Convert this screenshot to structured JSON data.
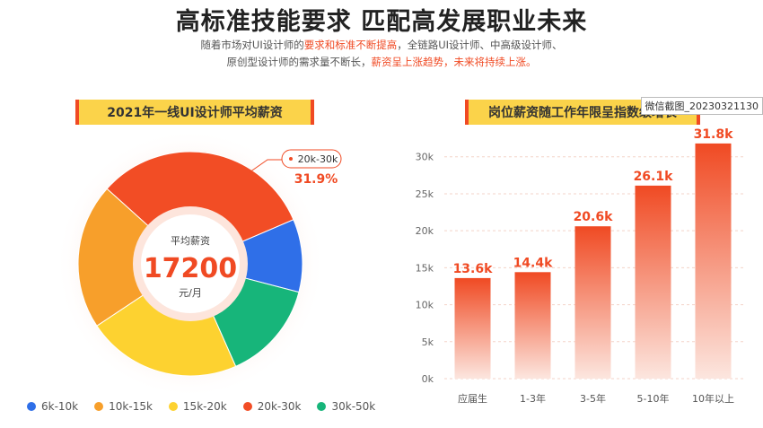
{
  "header": {
    "title": "高标准技能要求 匹配高发展职业未来",
    "sub1_a": "随着市场对UI设计师的",
    "sub1_b": "要求和标准不断提高",
    "sub1_c": "，全链路UI设计师、中高级设计师、",
    "sub2_a": "原创型设计师的需求量不断长，",
    "sub2_b": "薪资呈上涨趋势，未来将持续上涨。"
  },
  "watermark": "微信截图_20230321130",
  "colors": {
    "accent_red": "#f04a23",
    "banner_yellow": "#fbd34a"
  },
  "chart_data": [
    {
      "type": "pie",
      "title": "2021年一线UI设计师平均薪资",
      "center_label": "平均薪资",
      "center_value": "17200",
      "center_unit": "元/月",
      "callout_label": "20k-30k",
      "callout_value": "31.9%",
      "slices": [
        {
          "name": "20k-30k",
          "value": 31.9,
          "color": "#f24d25"
        },
        {
          "name": "6k-10k",
          "value": 10.5,
          "color": "#2f6fe8"
        },
        {
          "name": "30k-50k",
          "value": 14.3,
          "color": "#17b57a"
        },
        {
          "name": "15k-20k",
          "value": 22.3,
          "color": "#fdd230"
        },
        {
          "name": "10k-15k",
          "value": 21.0,
          "color": "#f79f2b"
        }
      ],
      "legend": [
        {
          "name": "6k-10k",
          "color": "#2f6fe8"
        },
        {
          "name": "10k-15k",
          "color": "#f79f2b"
        },
        {
          "name": "15k-20k",
          "color": "#fdd230"
        },
        {
          "name": "20k-30k",
          "color": "#f24d25"
        },
        {
          "name": "30k-50k",
          "color": "#17b57a"
        }
      ]
    },
    {
      "type": "bar",
      "title": "岗位薪资随工作年限呈指数级增长",
      "categories": [
        "应届生",
        "1-3年",
        "3-5年",
        "5-10年",
        "10年以上"
      ],
      "values": [
        13.6,
        14.4,
        20.6,
        26.1,
        31.8
      ],
      "value_labels": [
        "13.6k",
        "14.4k",
        "20.6k",
        "26.1k",
        "31.8k"
      ],
      "yticks": [
        0,
        5,
        10,
        15,
        20,
        25,
        30
      ],
      "ytick_labels": [
        "0k",
        "5k",
        "10k",
        "15k",
        "20k",
        "25k",
        "30k"
      ],
      "ylim": [
        0,
        33
      ],
      "grid": true
    }
  ]
}
